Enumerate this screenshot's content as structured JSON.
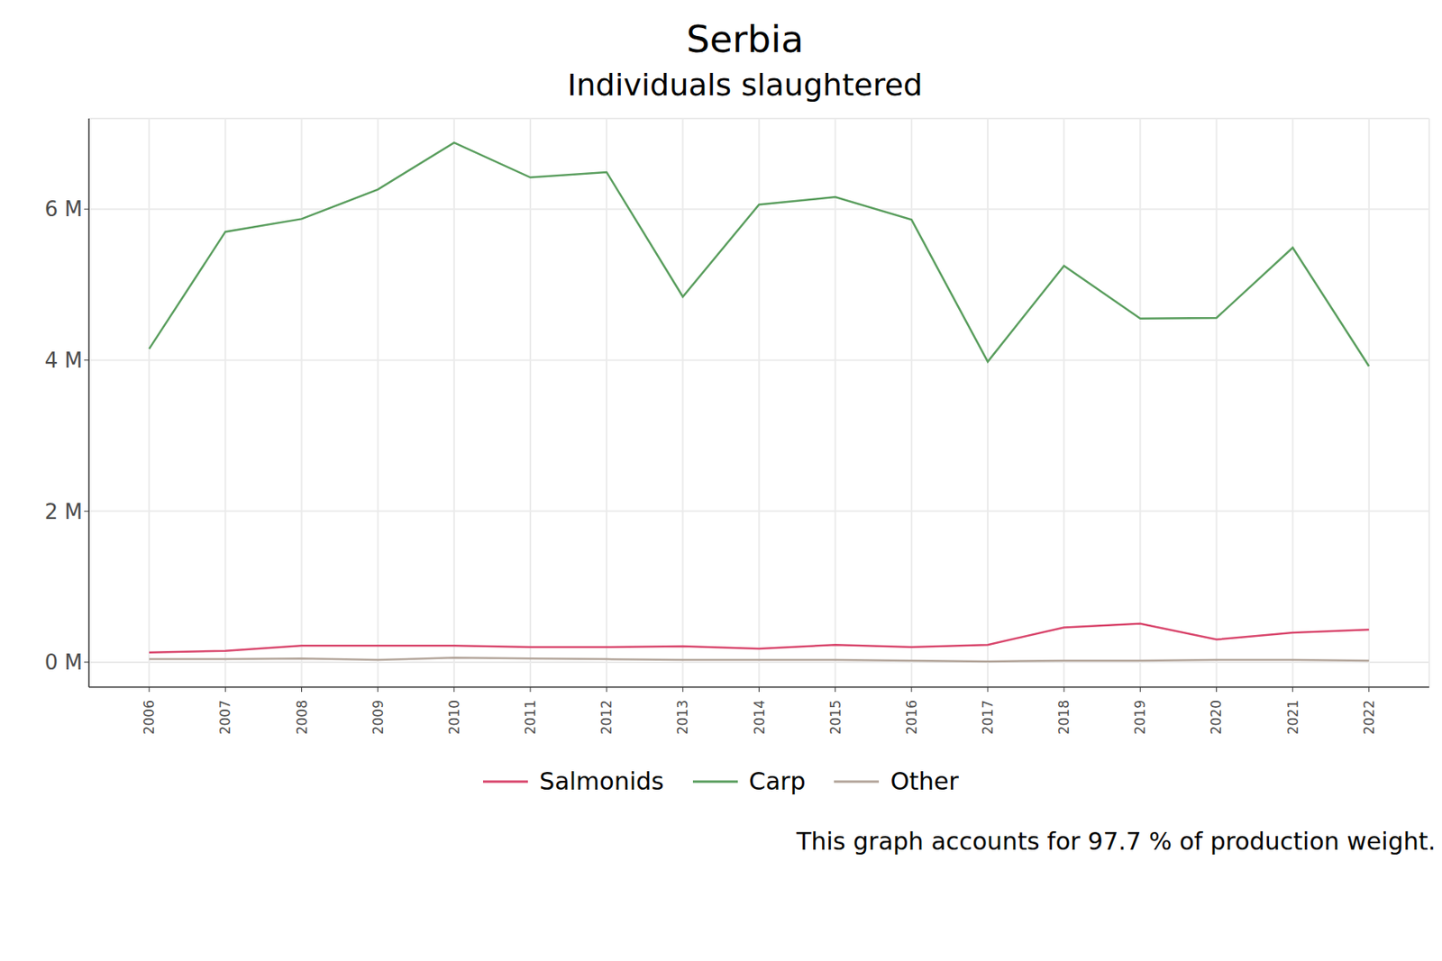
{
  "chart_data": {
    "type": "line",
    "title": "Serbia",
    "subtitle": "Individuals slaughtered",
    "caption": "This graph accounts for 97.7 % of production weight.",
    "x": [
      2006,
      2007,
      2008,
      2009,
      2010,
      2011,
      2012,
      2013,
      2014,
      2015,
      2016,
      2017,
      2018,
      2019,
      2020,
      2021,
      2022
    ],
    "xlim": [
      2005.21,
      2022.79
    ],
    "xticks": [
      2006,
      2007,
      2008,
      2009,
      2010,
      2011,
      2012,
      2013,
      2014,
      2015,
      2016,
      2017,
      2018,
      2019,
      2020,
      2021,
      2022
    ],
    "ylim": [
      -0.33,
      7.2
    ],
    "yticks": [
      {
        "value": 0,
        "label": "0 M"
      },
      {
        "value": 2,
        "label": "2 M"
      },
      {
        "value": 4,
        "label": "4 M"
      },
      {
        "value": 6,
        "label": "6 M"
      }
    ],
    "grid": true,
    "legend": "bottom",
    "series": [
      {
        "name": "Salmonids",
        "color": "#d9476d",
        "values": [
          0.13,
          0.15,
          0.22,
          0.22,
          0.22,
          0.2,
          0.2,
          0.21,
          0.18,
          0.23,
          0.2,
          0.23,
          0.46,
          0.51,
          0.3,
          0.39,
          0.43
        ]
      },
      {
        "name": "Carp",
        "color": "#5a9e5e",
        "values": [
          4.15,
          5.7,
          5.87,
          6.26,
          6.88,
          6.42,
          6.49,
          4.84,
          6.06,
          6.16,
          5.86,
          3.98,
          5.25,
          4.55,
          4.56,
          5.49,
          3.92
        ]
      },
      {
        "name": "Other",
        "color": "#b3a59a",
        "values": [
          0.04,
          0.04,
          0.05,
          0.03,
          0.06,
          0.05,
          0.04,
          0.03,
          0.03,
          0.03,
          0.02,
          0.01,
          0.02,
          0.02,
          0.03,
          0.03,
          0.02
        ]
      }
    ]
  }
}
